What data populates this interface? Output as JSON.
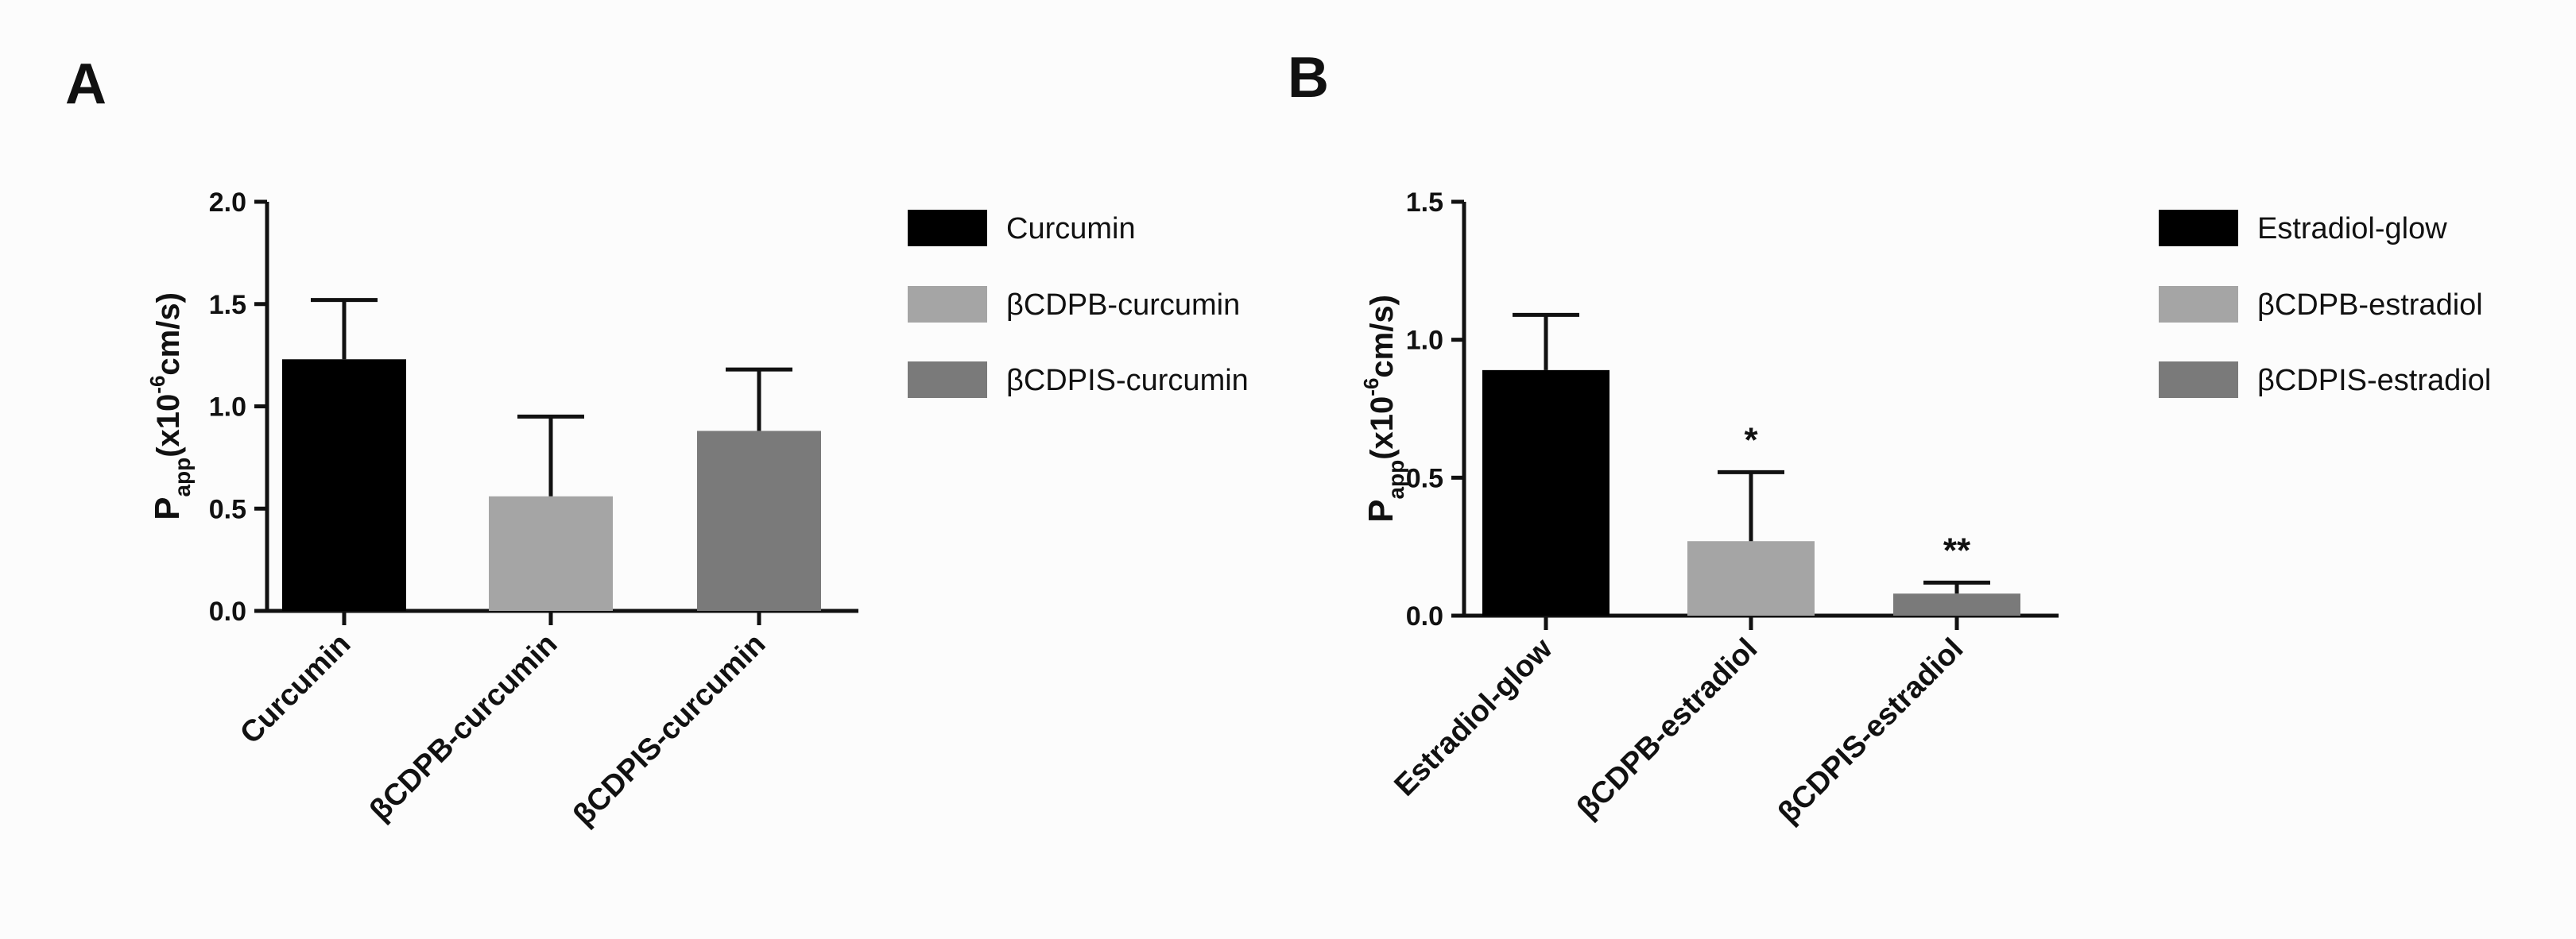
{
  "chart_data": [
    {
      "panel": "A",
      "type": "bar",
      "ylabel": "Papp(x10-6cm/s)",
      "ylabel_main": "P",
      "ylabel_sub": "app",
      "ylabel_mid": "(x10",
      "ylabel_sup": "-6",
      "ylabel_end": "cm/s)",
      "ylim": [
        0,
        2.0
      ],
      "yticks": [
        "0.0",
        "0.5",
        "1.0",
        "1.5",
        "2.0"
      ],
      "ytick_values": [
        0,
        0.5,
        1.0,
        1.5,
        2.0
      ],
      "categories": [
        "Curcumin",
        "βCDPB-curcumin",
        "βCDPIS-curcumin"
      ],
      "values": [
        1.23,
        0.56,
        0.88
      ],
      "errors": [
        0.29,
        0.39,
        0.3
      ],
      "significance": [
        "",
        "",
        ""
      ],
      "colors": [
        "#000000",
        "#a5a5a5",
        "#7a7a7a"
      ],
      "legend": [
        "Curcumin",
        "βCDPB-curcumin",
        "βCDPIS-curcumin"
      ],
      "legend_position": "right"
    },
    {
      "panel": "B",
      "type": "bar",
      "ylabel": "Papp(x10-6cm/s)",
      "ylabel_main": "P",
      "ylabel_sub": "app",
      "ylabel_mid": "(x10",
      "ylabel_sup": "-6",
      "ylabel_end": "cm/s)",
      "ylim": [
        0,
        1.5
      ],
      "yticks": [
        "0.0",
        "0.5",
        "1.0",
        "1.5"
      ],
      "ytick_values": [
        0,
        0.5,
        1.0,
        1.5
      ],
      "categories": [
        "Estradiol-glow",
        "βCDPB-estradiol",
        "βCDPIS-estradiol"
      ],
      "values": [
        0.89,
        0.27,
        0.08
      ],
      "errors": [
        0.2,
        0.25,
        0.04
      ],
      "significance": [
        "",
        "*",
        "**"
      ],
      "colors": [
        "#000000",
        "#a5a5a5",
        "#7a7a7a"
      ],
      "legend": [
        "Estradiol-glow",
        "βCDPB-estradiol",
        "βCDPIS-estradiol"
      ],
      "legend_position": "right"
    }
  ]
}
